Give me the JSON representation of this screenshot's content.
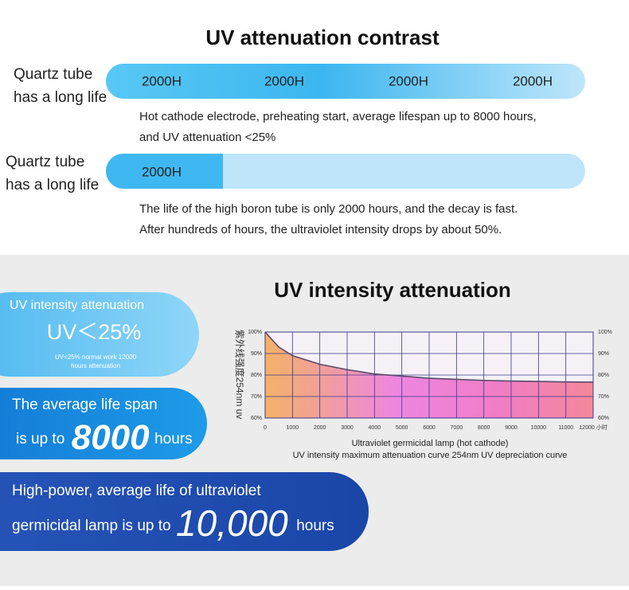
{
  "header": {
    "title": "UV attenuation contrast"
  },
  "comparison": [
    {
      "label": [
        "Quartz tube",
        "has a long life"
      ],
      "segments": [
        "2000H",
        "2000H",
        "2000H",
        "2000H"
      ],
      "description": [
        "Hot cathode electrode, preheating start, average lifespan up to 8000 hours,",
        "and UV attenuation <25%"
      ]
    },
    {
      "label": [
        "Quartz tube",
        "has a long life"
      ],
      "segments": [
        "2000H"
      ],
      "description": [
        "The life of the high boron tube is only 2000 hours, and the decay is fast.",
        "After hundreds of hours, the ultraviolet intensity drops by about 50%."
      ]
    }
  ],
  "features": [
    {
      "title": "UV intensity attenuation",
      "headline": "UV＜25%",
      "note": [
        "UV<25% normal work 12000",
        "hours attenuation"
      ]
    },
    {
      "title": "The average life span",
      "prefix": "is up to",
      "number": "8000",
      "suffix": "hours"
    },
    {
      "title": "High-power, average life of ultraviolet",
      "prefix": "germicidal lamp is up to",
      "number": "10,000",
      "suffix": "hours"
    }
  ],
  "chart_data": {
    "type": "area",
    "title": "UV intensity attenuation",
    "y_label": "紫外线强度254nm uv",
    "caption": [
      "Ultraviolet germicidal lamp (hot cathode)",
      "UV intensity maximum attenuation curve 254nm UV depreciation curve"
    ],
    "x": [
      0,
      500,
      1000,
      2000,
      3000,
      4000,
      5000,
      6000,
      7000,
      8000,
      9000,
      10000,
      11000,
      12000
    ],
    "values": [
      100,
      93,
      89,
      85,
      82.5,
      80.5,
      79.5,
      78.5,
      78,
      77.5,
      77.2,
      77,
      76.8,
      76.7
    ],
    "color": "#5a4a6a",
    "xlim": [
      0,
      12000
    ],
    "ylim": [
      60,
      100
    ],
    "xticks": [
      0,
      1000,
      2000,
      3000,
      4000,
      5000,
      6000,
      7000,
      8000,
      9000,
      10000,
      11000,
      {
        "value": 12000,
        "label": "12000 小时"
      }
    ],
    "yticks": [
      {
        "value": 60,
        "label": "60%"
      },
      {
        "value": 70,
        "label": "70%"
      },
      {
        "value": 80,
        "label": "80%"
      },
      {
        "value": 90,
        "label": "90%"
      },
      {
        "value": 100,
        "label": "100%"
      }
    ],
    "grid": true
  }
}
